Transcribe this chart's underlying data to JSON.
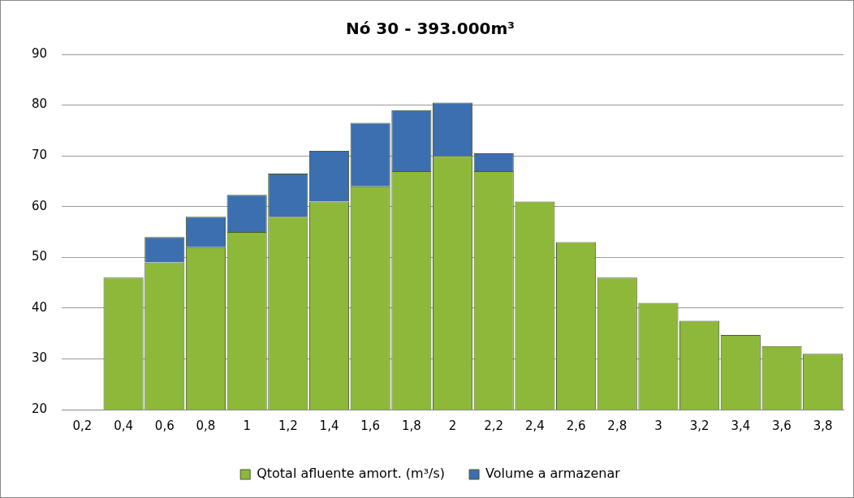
{
  "chart_data": {
    "type": "bar",
    "title": "Nó 30 - 393.000m³",
    "categories": [
      "0,2",
      "0,4",
      "0,6",
      "0,8",
      "1",
      "1,2",
      "1,4",
      "1,6",
      "1,8",
      "2",
      "2,2",
      "2,4",
      "2,6",
      "2,8",
      "3",
      "3,2",
      "3,4",
      "3,6",
      "3,8"
    ],
    "series": [
      {
        "name": "Qtotal afluente amort. (m³/s)",
        "color": "#8db83a",
        "values": [
          20,
          46,
          49,
          52,
          55,
          58,
          61,
          64,
          67,
          70,
          67,
          61,
          53,
          46,
          41,
          37.5,
          34.7,
          32.5,
          31
        ]
      },
      {
        "name": "Volume a armazenar",
        "color": "#3c6fb0",
        "base": [
          null,
          null,
          49,
          52,
          55,
          58,
          61,
          64,
          67,
          70,
          67,
          null,
          null,
          null,
          null,
          null,
          null,
          null,
          null
        ],
        "values": [
          null,
          null,
          5,
          6,
          7.3,
          8.5,
          10,
          12.5,
          12,
          10.5,
          3.5,
          null,
          null,
          null,
          null,
          null,
          null,
          null,
          null
        ]
      }
    ],
    "ylim": [
      20,
      90
    ],
    "yticks": [
      20,
      30,
      40,
      50,
      60,
      70,
      80,
      90
    ],
    "grid": "y",
    "legend": "bottom"
  }
}
